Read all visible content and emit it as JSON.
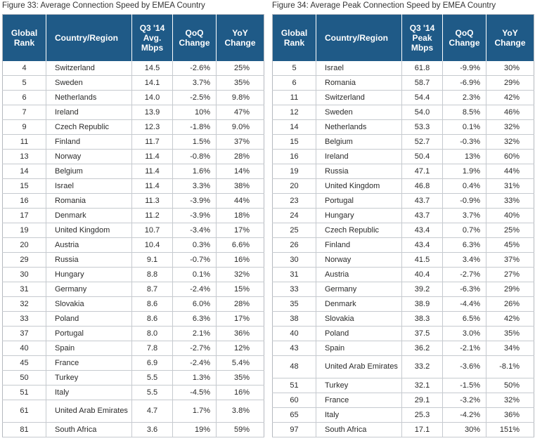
{
  "fig33": {
    "caption": "Figure 33: Average Connection Speed by EMEA Country",
    "headers": [
      "Global Rank",
      "Country/Region",
      "Q3 '14 Avg. Mbps",
      "QoQ Change",
      "YoY Change"
    ],
    "rows": [
      [
        "4",
        "Switzerland",
        "14.5",
        "-2.6%",
        "25%"
      ],
      [
        "5",
        "Sweden",
        "14.1",
        "3.7%",
        "35%"
      ],
      [
        "6",
        "Netherlands",
        "14.0",
        "-2.5%",
        "9.8%"
      ],
      [
        "7",
        "Ireland",
        "13.9",
        "10%",
        "47%"
      ],
      [
        "9",
        "Czech Republic",
        "12.3",
        "-1.8%",
        "9.0%"
      ],
      [
        "11",
        "Finland",
        "11.7",
        "1.5%",
        "37%"
      ],
      [
        "13",
        "Norway",
        "11.4",
        "-0.8%",
        "28%"
      ],
      [
        "14",
        "Belgium",
        "11.4",
        "1.6%",
        "14%"
      ],
      [
        "15",
        "Israel",
        "11.4",
        "3.3%",
        "38%"
      ],
      [
        "16",
        "Romania",
        "11.3",
        "-3.9%",
        "44%"
      ],
      [
        "17",
        "Denmark",
        "11.2",
        "-3.9%",
        "18%"
      ],
      [
        "19",
        "United Kingdom",
        "10.7",
        "-3.4%",
        "17%"
      ],
      [
        "20",
        "Austria",
        "10.4",
        "0.3%",
        "6.6%"
      ],
      [
        "29",
        "Russia",
        "9.1",
        "-0.7%",
        "16%"
      ],
      [
        "30",
        "Hungary",
        "8.8",
        "0.1%",
        "32%"
      ],
      [
        "31",
        "Germany",
        "8.7",
        "-2.4%",
        "15%"
      ],
      [
        "32",
        "Slovakia",
        "8.6",
        "6.0%",
        "28%"
      ],
      [
        "33",
        "Poland",
        "8.6",
        "6.3%",
        "17%"
      ],
      [
        "37",
        "Portugal",
        "8.0",
        "2.1%",
        "36%"
      ],
      [
        "40",
        "Spain",
        "7.8",
        "-2.7%",
        "12%"
      ],
      [
        "45",
        "France",
        "6.9",
        "-2.4%",
        "5.4%"
      ],
      [
        "50",
        "Turkey",
        "5.5",
        "1.3%",
        "35%"
      ],
      [
        "51",
        "Italy",
        "5.5",
        "-4.5%",
        "16%"
      ],
      [
        "61",
        "United Arab Emirates",
        "4.7",
        "1.7%",
        "3.8%"
      ],
      [
        "81",
        "South Africa",
        "3.6",
        "19%",
        "59%"
      ]
    ]
  },
  "fig34": {
    "caption": "Figure 34: Average Peak Connection Speed by EMEA Country",
    "headers": [
      "Global Rank",
      "Country/Region",
      "Q3 '14 Peak Mbps",
      "QoQ Change",
      "YoY Change"
    ],
    "rows": [
      [
        "5",
        "Israel",
        "61.8",
        "-9.9%",
        "30%"
      ],
      [
        "6",
        "Romania",
        "58.7",
        "-6.9%",
        "29%"
      ],
      [
        "11",
        "Switzerland",
        "54.4",
        "2.3%",
        "42%"
      ],
      [
        "12",
        "Sweden",
        "54.0",
        "8.5%",
        "46%"
      ],
      [
        "14",
        "Netherlands",
        "53.3",
        "0.1%",
        "32%"
      ],
      [
        "15",
        "Belgium",
        "52.7",
        "-0.3%",
        "32%"
      ],
      [
        "16",
        "Ireland",
        "50.4",
        "13%",
        "60%"
      ],
      [
        "19",
        "Russia",
        "47.1",
        "1.9%",
        "44%"
      ],
      [
        "20",
        "United Kingdom",
        "46.8",
        "0.4%",
        "31%"
      ],
      [
        "23",
        "Portugal",
        "43.7",
        "-0.9%",
        "33%"
      ],
      [
        "24",
        "Hungary",
        "43.7",
        "3.7%",
        "40%"
      ],
      [
        "25",
        "Czech Republic",
        "43.4",
        "0.7%",
        "25%"
      ],
      [
        "26",
        "Finland",
        "43.4",
        "6.3%",
        "45%"
      ],
      [
        "30",
        "Norway",
        "41.5",
        "3.4%",
        "37%"
      ],
      [
        "31",
        "Austria",
        "40.4",
        "-2.7%",
        "27%"
      ],
      [
        "33",
        "Germany",
        "39.2",
        "-6.3%",
        "29%"
      ],
      [
        "35",
        "Denmark",
        "38.9",
        "-4.4%",
        "26%"
      ],
      [
        "38",
        "Slovakia",
        "38.3",
        "6.5%",
        "42%"
      ],
      [
        "40",
        "Poland",
        "37.5",
        "3.0%",
        "35%"
      ],
      [
        "43",
        "Spain",
        "36.2",
        "-2.1%",
        "34%"
      ],
      [
        "48",
        "United Arab Emirates",
        "33.2",
        "-3.6%",
        "-8.1%"
      ],
      [
        "51",
        "Turkey",
        "32.1",
        "-1.5%",
        "50%"
      ],
      [
        "60",
        "France",
        "29.1",
        "-3.2%",
        "32%"
      ],
      [
        "65",
        "Italy",
        "25.3",
        "-4.2%",
        "36%"
      ],
      [
        "97",
        "South Africa",
        "17.1",
        "30%",
        "151%"
      ]
    ]
  }
}
